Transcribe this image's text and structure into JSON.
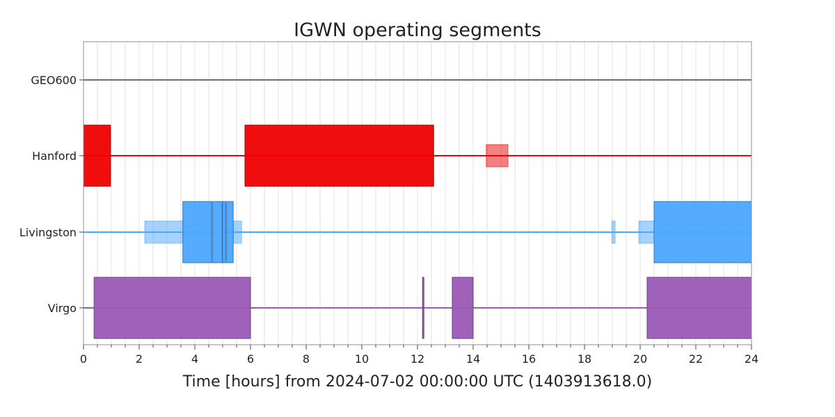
{
  "chart_data": {
    "type": "segments",
    "title": "IGWN operating segments",
    "xlabel": "Time [hours] from 2024-07-02 00:00:00 UTC (1403913618.0)",
    "xlim": [
      0,
      24
    ],
    "x_ticks": [
      "0",
      "2",
      "4",
      "6",
      "8",
      "10",
      "12",
      "14",
      "16",
      "18",
      "20",
      "22",
      "24"
    ],
    "grid": "vertical, every 0.5 hours",
    "series": [
      {
        "name": "GEO600",
        "color": "#6e6e6e",
        "segments": [],
        "secondary_segments": []
      },
      {
        "name": "Hanford",
        "color": "#ee0000",
        "segments": [
          [
            0,
            0.97
          ],
          [
            5.8,
            12.58
          ]
        ],
        "secondary_segments": [
          [
            14.47,
            15.25
          ]
        ]
      },
      {
        "name": "Livingston",
        "color": "#4ba6ff",
        "segments": [
          [
            3.57,
            4.6
          ],
          [
            4.63,
            4.98
          ],
          [
            5.0,
            5.1
          ],
          [
            5.13,
            5.38
          ],
          [
            20.5,
            24
          ]
        ],
        "secondary_segments": [
          [
            2.2,
            3.57
          ],
          [
            5.38,
            5.68
          ],
          [
            18.98,
            19.1
          ],
          [
            19.95,
            20.5
          ]
        ]
      },
      {
        "name": "Virgo",
        "color": "#9b59b6",
        "segments": [
          [
            0.38,
            6.0
          ],
          [
            12.18,
            12.23
          ],
          [
            13.25,
            14.0
          ],
          [
            20.25,
            24
          ]
        ],
        "secondary_segments": []
      }
    ]
  }
}
